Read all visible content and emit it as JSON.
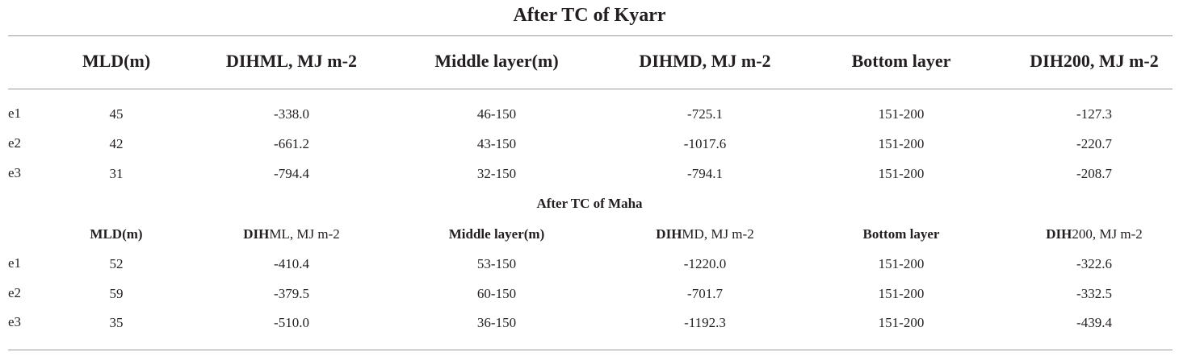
{
  "section1": {
    "title": "After TC of Kyarr",
    "headers": [
      "MLD(m)",
      "DIHML, MJ m-2",
      "Middle layer(m)",
      "DIHMD, MJ m-2",
      "Bottom layer",
      "DIH200, MJ m-2"
    ],
    "rows": [
      {
        "label": "e1",
        "values": [
          "45",
          "-338.0",
          "46-150",
          "-725.1",
          "151-200",
          "-127.3"
        ]
      },
      {
        "label": "e2",
        "values": [
          "42",
          "-661.2",
          "43-150",
          "-1017.6",
          "151-200",
          "-220.7"
        ]
      },
      {
        "label": "e3",
        "values": [
          "31",
          "-794.4",
          "32-150",
          "-794.1",
          "151-200",
          "-208.7"
        ]
      }
    ]
  },
  "section2": {
    "title": "After TC of Maha",
    "headers": [
      {
        "bold": "MLD(m)",
        "rest": ""
      },
      {
        "bold": "DIH",
        "rest": "ML, MJ m-2"
      },
      {
        "bold": "Middle layer(m)",
        "rest": ""
      },
      {
        "bold": "DIH",
        "rest": "MD, MJ m-2"
      },
      {
        "bold": "Bottom layer",
        "rest": ""
      },
      {
        "bold": "DIH",
        "rest": "200, MJ m-2"
      }
    ],
    "rows": [
      {
        "label": "e1",
        "values": [
          "52",
          "-410.4",
          "53-150",
          "-1220.0",
          "151-200",
          "-322.6"
        ]
      },
      {
        "label": "e2",
        "values": [
          "59",
          "-379.5",
          "60-150",
          "-701.7",
          "151-200",
          "-332.5"
        ]
      },
      {
        "label": "e3",
        "values": [
          "35",
          "-510.0",
          "36-150",
          "-1192.3",
          "151-200",
          "-439.4"
        ]
      }
    ]
  }
}
